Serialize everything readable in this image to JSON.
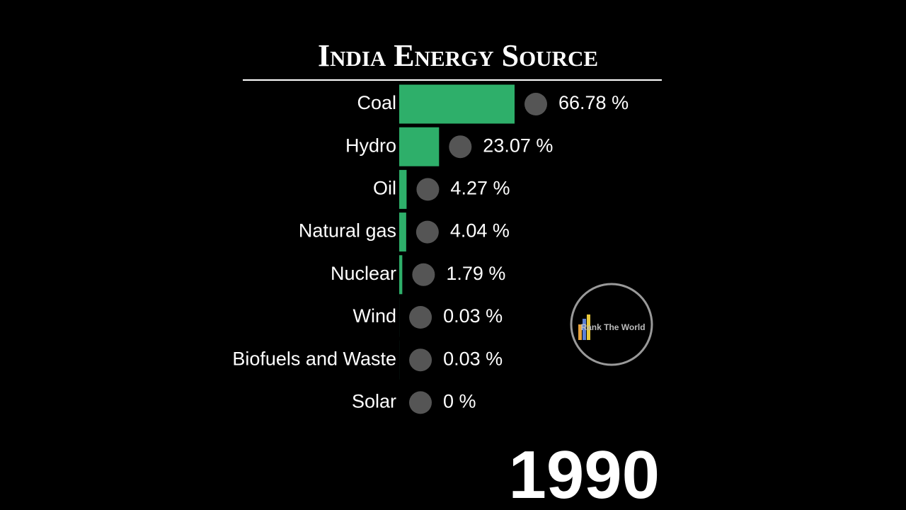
{
  "chart_data": {
    "type": "bar",
    "orientation": "horizontal",
    "title": "India Energy Source",
    "categories": [
      "Coal",
      "Hydro",
      "Oil",
      "Natural gas",
      "Nuclear",
      "Wind",
      "Biofuels and Waste",
      "Solar"
    ],
    "values": [
      66.78,
      23.07,
      4.27,
      4.04,
      1.79,
      0.03,
      0.03,
      0
    ],
    "value_labels": [
      "66.78 %",
      "23.07 %",
      "4.27 %",
      "4.04 %",
      "1.79 %",
      "0.03 %",
      "0.03 %",
      "0 %"
    ],
    "color": "#2eaf6a",
    "annotation": "1990",
    "watermark": "Rank The World"
  }
}
